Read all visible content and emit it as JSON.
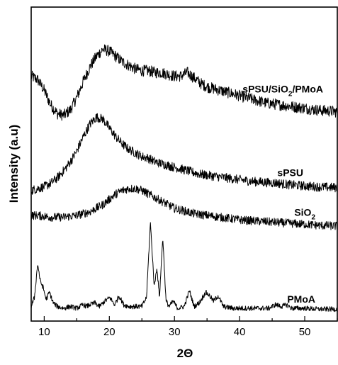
{
  "chart_data": {
    "type": "line",
    "xlabel": "2Θ",
    "ylabel": "Intensity (a.u)",
    "xlim": [
      8,
      55
    ],
    "xticks": [
      10,
      20,
      30,
      40,
      50
    ],
    "grid": false,
    "legend": "none",
    "series": [
      {
        "name": "sPSU/SiO2/PMoA",
        "label_main": "sPSU/SiO",
        "label_sub": "2",
        "label_tail": "/PMoA",
        "offset": 100,
        "x": [
          8,
          9,
          10,
          11,
          12,
          13,
          14,
          15,
          16,
          17,
          18,
          19,
          20,
          21,
          22,
          23,
          24,
          25,
          26,
          27,
          28,
          29,
          30,
          31,
          32,
          33,
          34,
          35,
          36,
          37,
          38,
          39,
          40,
          42,
          44,
          46,
          48,
          50,
          52,
          55
        ],
        "y": [
          32,
          30,
          24,
          16,
          11,
          10,
          13,
          20,
          29,
          37,
          43,
          47,
          46,
          43,
          40,
          38,
          36,
          35,
          35,
          34,
          34,
          33,
          32,
          32,
          34,
          31,
          28,
          26,
          25,
          24,
          23,
          22,
          21,
          19,
          17,
          16,
          15,
          14,
          13,
          12
        ]
      },
      {
        "name": "sPSU",
        "label_main": "sPSU",
        "label_sub": "",
        "label_tail": "",
        "offset": 67,
        "x": [
          8,
          9,
          10,
          11,
          12,
          13,
          14,
          15,
          16,
          17,
          18,
          19,
          20,
          21,
          22,
          23,
          24,
          25,
          26,
          27,
          28,
          29,
          30,
          31,
          32,
          33,
          34,
          35,
          36,
          38,
          40,
          42,
          44,
          46,
          48,
          50,
          52,
          55
        ],
        "y": [
          1,
          2,
          3,
          5,
          8,
          12,
          17,
          23,
          31,
          38,
          42,
          41,
          36,
          31,
          27,
          24,
          22,
          20,
          19,
          17,
          16,
          15,
          14,
          13,
          12,
          11,
          10,
          9.5,
          9,
          8,
          7,
          6,
          5.5,
          5,
          4,
          3.5,
          3,
          2.5
        ]
      },
      {
        "name": "SiO2",
        "label_main": "SiO",
        "label_sub": "2",
        "label_tail": "",
        "offset": 46,
        "x": [
          8,
          9,
          10,
          11,
          12,
          13,
          14,
          15,
          16,
          17,
          18,
          19,
          20,
          21,
          22,
          23,
          24,
          25,
          26,
          27,
          28,
          29,
          30,
          31,
          32,
          33,
          34,
          35,
          36,
          38,
          40,
          42,
          44,
          46,
          48,
          50,
          52,
          55
        ],
        "y": [
          8,
          8,
          7.5,
          7,
          7,
          7,
          7.5,
          8,
          9,
          10,
          12,
          14,
          17,
          20,
          22,
          23,
          23,
          22,
          20,
          18,
          16,
          14,
          12,
          11,
          10,
          9,
          8.5,
          8,
          7.5,
          6.5,
          5.5,
          5,
          4.5,
          4,
          3.5,
          3,
          2.5,
          2
        ]
      },
      {
        "name": "PMoA",
        "label_main": "PMoA",
        "label_sub": "",
        "label_tail": "",
        "offset": 0,
        "x": [
          8,
          8.5,
          9.0,
          9.4,
          9.8,
          10.3,
          10.8,
          11.4,
          12,
          13,
          14,
          15,
          16,
          16.5,
          17,
          17.8,
          18.5,
          19.3,
          20.1,
          20.8,
          21.5,
          22.2,
          23,
          24,
          25,
          25.7,
          26.3,
          26.9,
          27.3,
          27.7,
          28.2,
          28.7,
          29.2,
          29.8,
          30.5,
          31.5,
          32.3,
          33,
          33.8,
          34.8,
          35.4,
          36,
          36.7,
          37.5,
          39,
          41,
          43,
          44.5,
          45.5,
          46.5,
          47.2,
          48,
          50,
          52,
          55
        ],
        "y": [
          3,
          8,
          27,
          17,
          14,
          7,
          11,
          5,
          3,
          2,
          3,
          2,
          4,
          3,
          4,
          5,
          3,
          6,
          8,
          4,
          9,
          4,
          3,
          3,
          3,
          8,
          50,
          14,
          25,
          8,
          42,
          6,
          3,
          6,
          2,
          3,
          12,
          3,
          5,
          11,
          9,
          6,
          9,
          3,
          2,
          2,
          2,
          2,
          4,
          3,
          4,
          2,
          2,
          1.5,
          1.5
        ]
      }
    ]
  }
}
